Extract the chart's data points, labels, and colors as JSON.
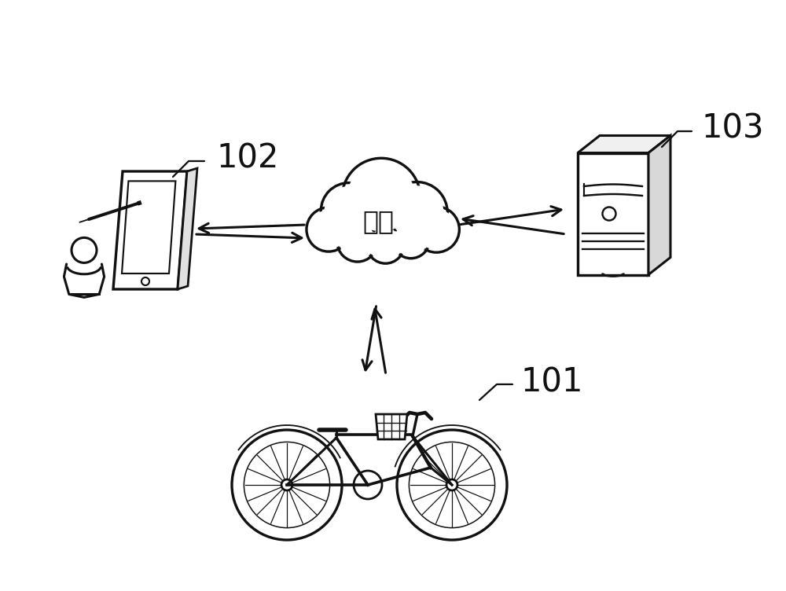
{
  "background_color": "#ffffff",
  "label_102": "102",
  "label_103": "103",
  "label_101": "101",
  "cloud_text": "网络",
  "cloud_text_fontsize": 24,
  "label_fontsize": 30,
  "figsize": [
    10.0,
    7.52
  ],
  "dpi": 100,
  "line_color": "#111111",
  "line_width": 2.2
}
